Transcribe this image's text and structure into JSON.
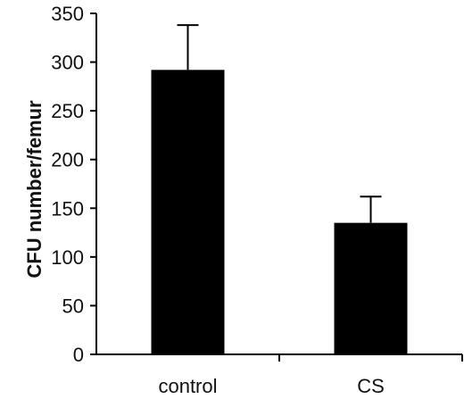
{
  "chart_data": {
    "type": "bar",
    "title": "",
    "xlabel": "",
    "ylabel": "CFU number/femur",
    "categories": [
      "control",
      "CS"
    ],
    "values": [
      292,
      135
    ],
    "error_upper": [
      338,
      162
    ],
    "ylim": [
      0,
      350
    ],
    "yticks": [
      0,
      50,
      100,
      150,
      200,
      250,
      300,
      350
    ],
    "grid": false,
    "legend": "none",
    "bar_color": "#000000",
    "axis_color": "#000000"
  }
}
